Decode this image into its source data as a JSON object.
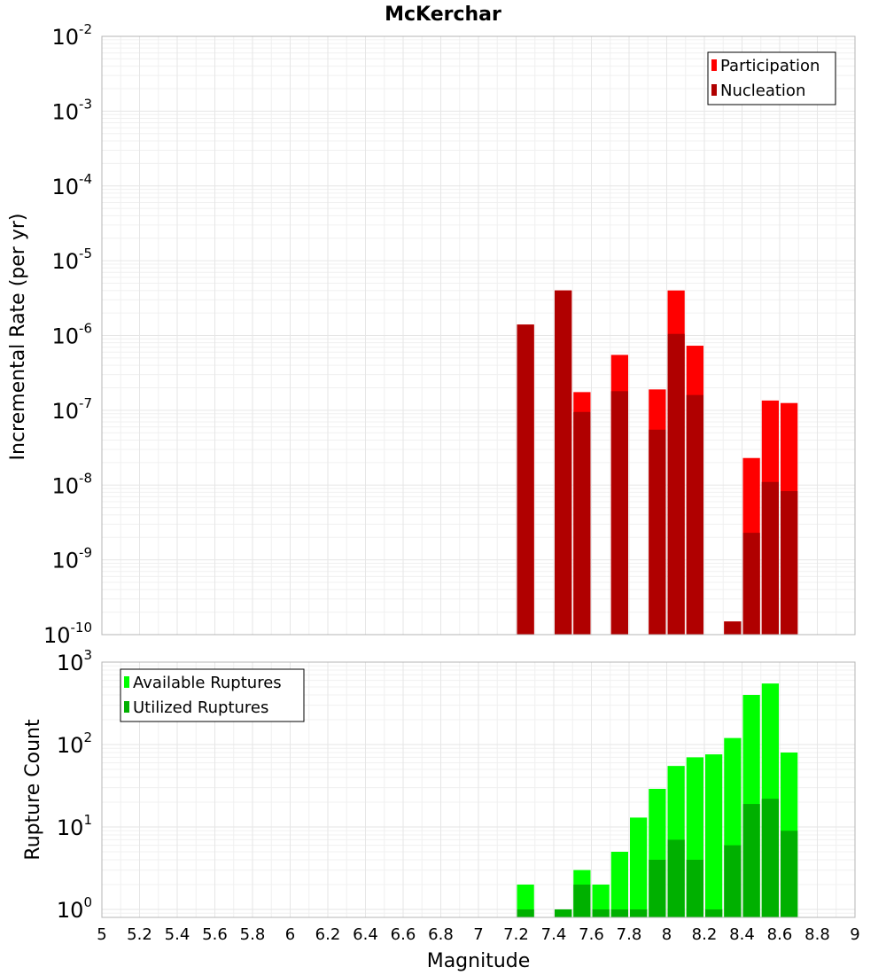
{
  "title": "McKerchar",
  "xlabel": "Magnitude",
  "x_ticks": [
    "5",
    "5.2",
    "5.4",
    "5.6",
    "5.8",
    "6",
    "6.2",
    "6.4",
    "6.6",
    "6.8",
    "7",
    "7.2",
    "7.4",
    "7.6",
    "7.8",
    "8",
    "8.2",
    "8.4",
    "8.6",
    "8.8",
    "9"
  ],
  "chart_data": [
    {
      "type": "bar",
      "ylabel": "Incremental Rate (per yr)",
      "yscale": "log",
      "ylim": [
        1e-10,
        0.01
      ],
      "xlim": [
        5,
        9
      ],
      "y_ticks": [
        {
          "base": "10",
          "exp": "-10"
        },
        {
          "base": "10",
          "exp": "-9"
        },
        {
          "base": "10",
          "exp": "-8"
        },
        {
          "base": "10",
          "exp": "-7"
        },
        {
          "base": "10",
          "exp": "-6"
        },
        {
          "base": "10",
          "exp": "-5"
        },
        {
          "base": "10",
          "exp": "-4"
        },
        {
          "base": "10",
          "exp": "-3"
        },
        {
          "base": "10",
          "exp": "-2"
        }
      ],
      "legend_position": "top-right",
      "grid": true,
      "x": [
        7.25,
        7.45,
        7.55,
        7.75,
        7.95,
        8.05,
        8.15,
        8.35,
        8.45,
        8.55,
        8.65
      ],
      "series": [
        {
          "name": "Participation",
          "color": "#ff0000",
          "values": [
            1.4e-06,
            4e-06,
            1.75e-07,
            5.5e-07,
            1.9e-07,
            4e-06,
            7.3e-07,
            1.5e-10,
            2.3e-08,
            1.35e-07,
            1.25e-07
          ]
        },
        {
          "name": "Nucleation",
          "color": "#b00000",
          "values": [
            1.4e-06,
            4e-06,
            9.5e-08,
            1.8e-07,
            5.5e-08,
            1.05e-06,
            1.6e-07,
            1.5e-10,
            2.3e-09,
            1.1e-08,
            8.3e-09
          ]
        }
      ]
    },
    {
      "type": "bar",
      "ylabel": "Rupture Count",
      "yscale": "log",
      "ylim": [
        0.8,
        1000
      ],
      "xlim": [
        5,
        9
      ],
      "y_ticks": [
        {
          "base": "10",
          "exp": "0"
        },
        {
          "base": "10",
          "exp": "1"
        },
        {
          "base": "10",
          "exp": "2"
        },
        {
          "base": "10",
          "exp": "3"
        }
      ],
      "legend_position": "top-left",
      "grid": true,
      "x": [
        7.25,
        7.45,
        7.55,
        7.65,
        7.75,
        7.85,
        7.95,
        8.05,
        8.15,
        8.25,
        8.35,
        8.45,
        8.55,
        8.65
      ],
      "series": [
        {
          "name": "Available Ruptures",
          "color": "#00ff00",
          "values": [
            2,
            1,
            3,
            2,
            5,
            13,
            29,
            55,
            70,
            76,
            120,
            400,
            550,
            80
          ]
        },
        {
          "name": "Utilized Ruptures",
          "color": "#00b000",
          "values": [
            1,
            1,
            2,
            1,
            1,
            1,
            4,
            7,
            4,
            1,
            6,
            19,
            22,
            9
          ]
        }
      ]
    }
  ]
}
